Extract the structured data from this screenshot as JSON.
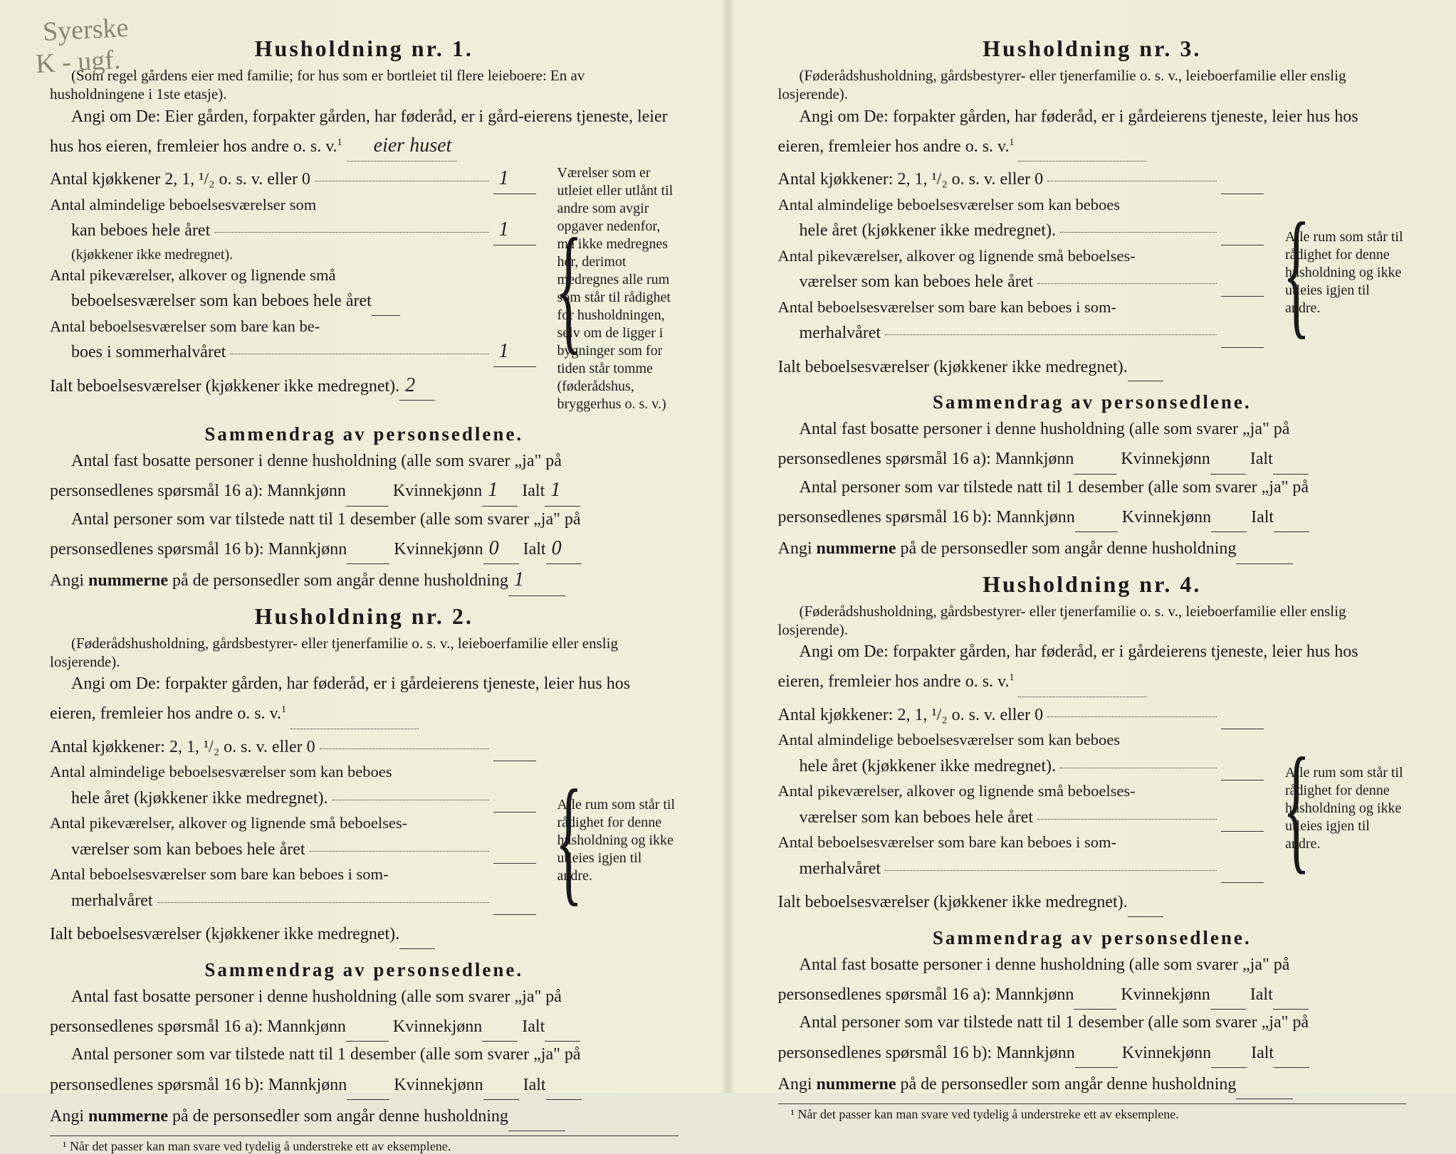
{
  "handwritten": {
    "line1": "Syerske",
    "line2": "K - ugf."
  },
  "households": [
    {
      "title": "Husholdning nr. 1.",
      "note": "(Som regel gårdens eier med familie; for hus som er bortleiet til flere leieboere: En av husholdningene i 1ste etasje).",
      "angi_prefix": "Angi om De:  Eier gården, forpakter gården, har føderåd, er i gård-eierens tjeneste, leier hus hos eieren, fremleier hos andre o. s. v.",
      "angi_sup": "1",
      "angi_value": "eier huset",
      "rows": {
        "kjokken_label": "Antal kjøkkener 2, 1, ¹/₂ o. s. v. eller 0",
        "kjokken_value": "1",
        "alm_label_1": "Antal almindelige beboelsesværelser som",
        "alm_label_2": "kan beboes hele året",
        "alm_note": "(kjøkkener ikke medregnet).",
        "alm_value": "1",
        "pike_label_1": "Antal pikeværelser, alkover og lignende små",
        "pike_label_2": "beboelsesværelser som kan beboes hele året",
        "pike_value": "",
        "sommer_label_1": "Antal beboelsesværelser som bare kan be-",
        "sommer_label_2": "boes i sommerhalvåret",
        "sommer_value": "1",
        "ialt_label": "Ialt beboelsesværelser (kjøkkener ikke medregnet).",
        "ialt_value": "2"
      },
      "side_note": "Værelser som er utleiet eller utlånt til andre som avgir opgaver nedenfor, må ikke medregnes her, derimot medregnes alle rum som står til rådighet for husholdningen, selv om de ligger i bygninger som for tiden står tomme (føderådshus, bryggerhus o. s. v.)",
      "summary_title": "Sammendrag av personsedlene.",
      "sum_line1_a": "Antal fast bosatte personer i denne husholdning (alle som svarer „ja\" på",
      "sum_line1_b": "personsedlenes spørsmål 16 a): Mannkjønn",
      "sum_line1_kv": "Kvinnekjønn",
      "sum_line1_ialt": "Ialt",
      "val_16a_m": "",
      "val_16a_k": "1",
      "val_16a_i": "1",
      "sum_line2_a": "Antal personer som var tilstede natt til 1 desember (alle som svarer „ja\" på",
      "sum_line2_b": "personsedlenes spørsmål 16 b): Mannkjønn",
      "val_16b_m": "",
      "val_16b_k": "0",
      "val_16b_i": "0",
      "num_line": "Angi nummerne på de personsedler som angår denne husholdning",
      "num_value": "1"
    },
    {
      "title": "Husholdning nr. 2.",
      "note": "(Føderådshusholdning, gårdsbestyrer- eller tjenerfamilie o. s. v., leieboerfamilie eller enslig losjerende).",
      "angi_prefix": "Angi om De:  forpakter gården, har føderåd, er i gårdeierens tjeneste, leier hus hos eieren, fremleier hos andre o. s. v.",
      "angi_sup": "1",
      "angi_value": "",
      "rows": {
        "kjokken_label": "Antal kjøkkener: 2, 1, ¹/₂ o. s. v. eller 0",
        "kjokken_value": "",
        "alm_label_1": "Antal almindelige beboelsesværelser som kan beboes",
        "alm_label_2": "hele året (kjøkkener ikke medregnet).",
        "alm_value": "",
        "pike_label_1": "Antal pikeværelser, alkover og lignende små beboelses-",
        "pike_label_2": "værelser som kan beboes hele året",
        "pike_value": "",
        "sommer_label_1": "Antal beboelsesværelser som bare kan beboes i som-",
        "sommer_label_2": "merhalvåret",
        "sommer_value": "",
        "ialt_label": "Ialt beboelsesværelser  (kjøkkener ikke medregnet).",
        "ialt_value": ""
      },
      "side_note": "Alle rum som står til rådighet for denne husholdning og ikke utleies igjen til andre.",
      "summary_title": "Sammendrag av personsedlene.",
      "sum_line1_a": "Antal fast bosatte personer i denne husholdning (alle som svarer „ja\" på",
      "sum_line1_b": "personsedlenes spørsmål 16 a): Mannkjønn",
      "sum_line1_kv": "Kvinnekjønn",
      "sum_line1_ialt": "Ialt",
      "val_16a_m": "",
      "val_16a_k": "",
      "val_16a_i": "",
      "sum_line2_a": "Antal personer som var tilstede natt til 1 desember (alle som svarer „ja\" på",
      "sum_line2_b": "personsedlenes spørsmål 16 b): Mannkjønn",
      "val_16b_m": "",
      "val_16b_k": "",
      "val_16b_i": "",
      "num_line": "Angi nummerne på de personsedler som angår denne husholdning",
      "num_value": ""
    },
    {
      "title": "Husholdning nr. 3.",
      "note": "(Føderådshusholdning, gårdsbestyrer- eller tjenerfamilie o. s. v., leieboerfamilie eller enslig losjerende).",
      "angi_prefix": "Angi om De:  forpakter gården, har føderåd, er i gårdeierens tjeneste, leier hus hos eieren, fremleier hos andre o. s. v.",
      "angi_sup": "1",
      "angi_value": "",
      "rows": {
        "kjokken_label": "Antal kjøkkener: 2, 1, ¹/₂ o. s. v. eller 0",
        "kjokken_value": "",
        "alm_label_1": "Antal almindelige beboelsesværelser som kan beboes",
        "alm_label_2": "hele året (kjøkkener ikke medregnet).",
        "alm_value": "",
        "pike_label_1": "Antal pikeværelser, alkover og lignende små beboelses-",
        "pike_label_2": "værelser som kan beboes hele året",
        "pike_value": "",
        "sommer_label_1": "Antal beboelsesværelser som bare kan beboes i som-",
        "sommer_label_2": "merhalvåret",
        "sommer_value": "",
        "ialt_label": "Ialt beboelsesværelser  (kjøkkener ikke medregnet).",
        "ialt_value": ""
      },
      "side_note": "Alle rum som står til rådighet for denne husholdning og ikke utleies igjen til andre.",
      "summary_title": "Sammendrag av personsedlene.",
      "sum_line1_a": "Antal fast bosatte personer i denne husholdning (alle som svarer „ja\" på",
      "sum_line1_b": "personsedlenes spørsmål 16 a): Mannkjønn",
      "sum_line1_kv": "Kvinnekjønn",
      "sum_line1_ialt": "Ialt",
      "val_16a_m": "",
      "val_16a_k": "",
      "val_16a_i": "",
      "sum_line2_a": "Antal personer som var tilstede natt til 1 desember (alle som svarer „ja\" på",
      "sum_line2_b": "personsedlenes spørsmål 16 b): Mannkjønn",
      "val_16b_m": "",
      "val_16b_k": "",
      "val_16b_i": "",
      "num_line": "Angi nummerne på de personsedler som angår denne husholdning",
      "num_value": ""
    },
    {
      "title": "Husholdning nr. 4.",
      "note": "(Føderådshusholdning, gårdsbestyrer- eller tjenerfamilie o. s. v., leieboerfamilie eller enslig losjerende).",
      "angi_prefix": "Angi om De:  forpakter gården, har føderåd, er i gårdeierens tjeneste, leier hus hos eieren, fremleier hos andre o. s. v.",
      "angi_sup": "1",
      "angi_value": "",
      "rows": {
        "kjokken_label": "Antal kjøkkener: 2, 1, ¹/₂ o. s. v. eller 0",
        "kjokken_value": "",
        "alm_label_1": "Antal almindelige beboelsesværelser som kan beboes",
        "alm_label_2": "hele året (kjøkkener ikke medregnet).",
        "alm_value": "",
        "pike_label_1": "Antal pikeværelser, alkover og lignende små beboelses-",
        "pike_label_2": "værelser som kan beboes hele året",
        "pike_value": "",
        "sommer_label_1": "Antal beboelsesværelser som bare kan beboes i som-",
        "sommer_label_2": "merhalvåret",
        "sommer_value": "",
        "ialt_label": "Ialt beboelsesværelser  (kjøkkener ikke medregnet).",
        "ialt_value": ""
      },
      "side_note": "Alle rum som står til rådighet for denne husholdning og ikke utleies igjen til andre.",
      "summary_title": "Sammendrag av personsedlene.",
      "sum_line1_a": "Antal fast bosatte personer i denne husholdning (alle som svarer „ja\" på",
      "sum_line1_b": "personsedlenes spørsmål 16 a): Mannkjønn",
      "sum_line1_kv": "Kvinnekjønn",
      "sum_line1_ialt": "Ialt",
      "val_16a_m": "",
      "val_16a_k": "",
      "val_16a_i": "",
      "sum_line2_a": "Antal personer som var tilstede natt til 1 desember (alle som svarer „ja\" på",
      "sum_line2_b": "personsedlenes spørsmål 16 b): Mannkjønn",
      "val_16b_m": "",
      "val_16b_k": "",
      "val_16b_i": "",
      "num_line": "Angi nummerne på de personsedler som angår denne husholdning",
      "num_value": ""
    }
  ],
  "footnote": "¹  Når det passer kan man svare ved tydelig å understreke ett av eksemplene."
}
